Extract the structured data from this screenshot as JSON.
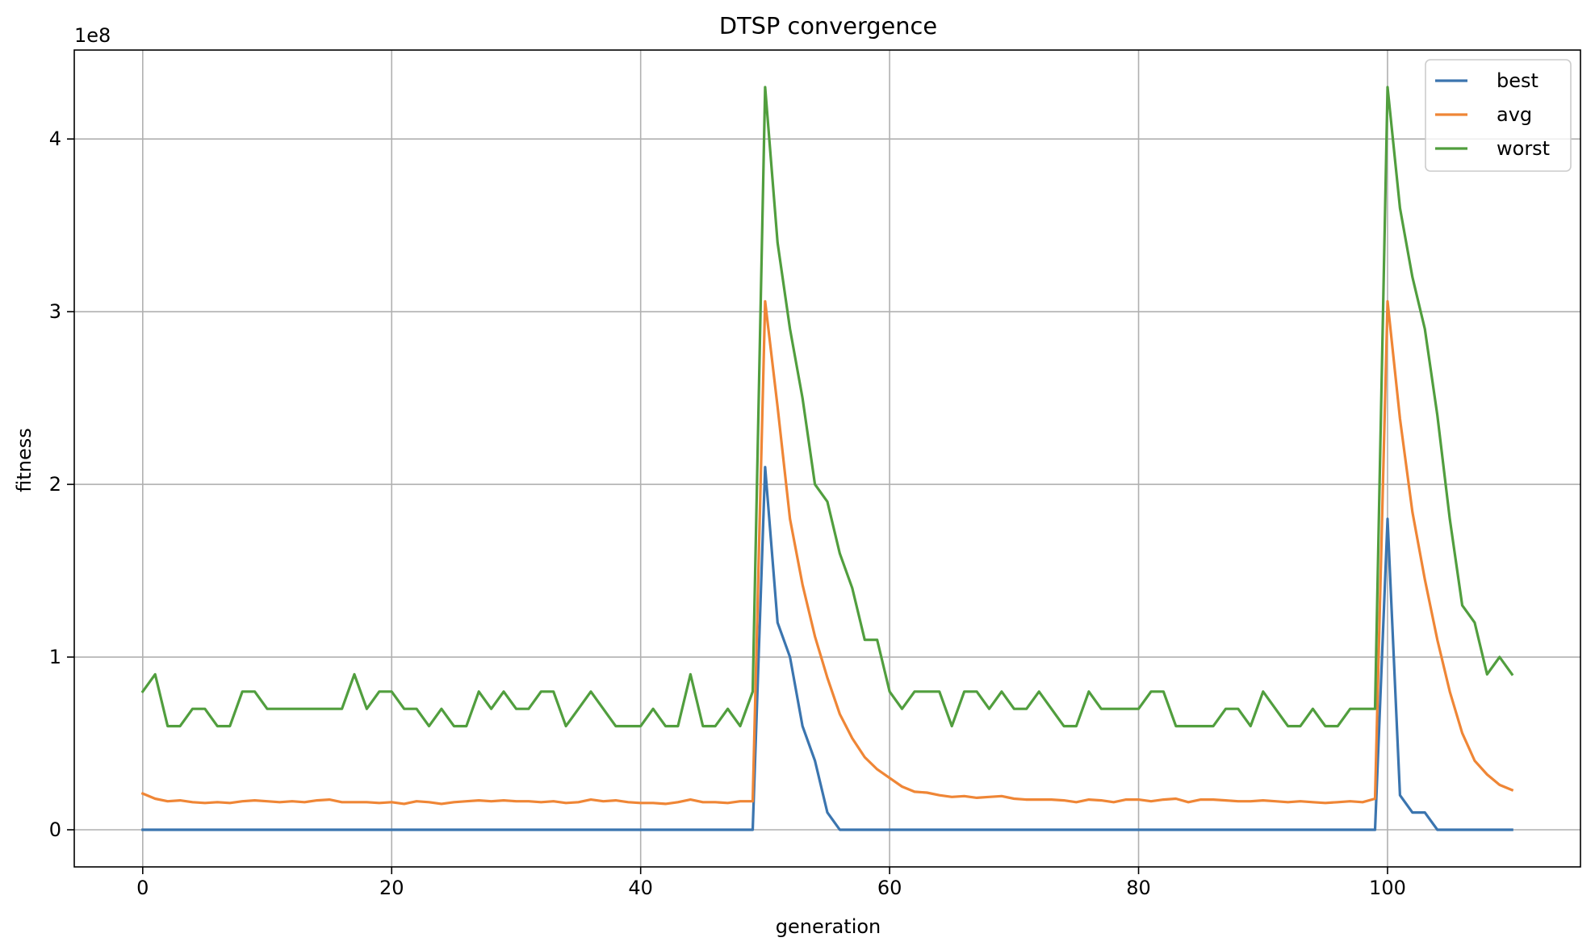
{
  "chart_data": {
    "type": "line",
    "title": "DTSP convergence",
    "xlabel": "generation",
    "ylabel": "fitness",
    "y_offset_text": "1e8",
    "xlim": [
      -5.5,
      115.5
    ],
    "ylim": [
      -0.215,
      4.515
    ],
    "x_ticks": [
      0,
      20,
      40,
      60,
      80,
      100
    ],
    "y_ticks": [
      0,
      1,
      2,
      3,
      4
    ],
    "grid": true,
    "legend_position": "top-right",
    "series": [
      {
        "name": "best",
        "color": "#3b75af",
        "x": [
          0,
          1,
          2,
          3,
          4,
          5,
          6,
          7,
          8,
          9,
          10,
          11,
          12,
          13,
          14,
          15,
          16,
          17,
          18,
          19,
          20,
          21,
          22,
          23,
          24,
          25,
          26,
          27,
          28,
          29,
          30,
          31,
          32,
          33,
          34,
          35,
          36,
          37,
          38,
          39,
          40,
          41,
          42,
          43,
          44,
          45,
          46,
          47,
          48,
          49,
          50,
          51,
          52,
          53,
          54,
          55,
          56,
          57,
          58,
          59,
          60,
          61,
          62,
          63,
          64,
          65,
          66,
          67,
          68,
          69,
          70,
          71,
          72,
          73,
          74,
          75,
          76,
          77,
          78,
          79,
          80,
          81,
          82,
          83,
          84,
          85,
          86,
          87,
          88,
          89,
          90,
          91,
          92,
          93,
          94,
          95,
          96,
          97,
          98,
          99,
          100,
          101,
          102,
          103,
          104,
          105,
          106,
          107,
          108,
          109,
          110
        ],
        "values": [
          0,
          0,
          0,
          0,
          0,
          0,
          0,
          0,
          0,
          0,
          0,
          0,
          0,
          0,
          0,
          0,
          0,
          0,
          0,
          0,
          0,
          0,
          0,
          0,
          0,
          0,
          0,
          0,
          0,
          0,
          0,
          0,
          0,
          0,
          0,
          0,
          0,
          0,
          0,
          0,
          0,
          0,
          0,
          0,
          0,
          0,
          0,
          0,
          0,
          0,
          2.1,
          1.2,
          1.0,
          0.6,
          0.4,
          0.1,
          0,
          0,
          0,
          0,
          0,
          0,
          0,
          0,
          0,
          0,
          0,
          0,
          0,
          0,
          0,
          0,
          0,
          0,
          0,
          0,
          0,
          0,
          0,
          0,
          0,
          0,
          0,
          0,
          0,
          0,
          0,
          0,
          0,
          0,
          0,
          0,
          0,
          0,
          0,
          0,
          0,
          0,
          0,
          0,
          1.8,
          0.2,
          0.1,
          0.1,
          0,
          0,
          0,
          0,
          0,
          0,
          0
        ]
      },
      {
        "name": "avg",
        "color": "#ef8636",
        "x": [
          0,
          1,
          2,
          3,
          4,
          5,
          6,
          7,
          8,
          9,
          10,
          11,
          12,
          13,
          14,
          15,
          16,
          17,
          18,
          19,
          20,
          21,
          22,
          23,
          24,
          25,
          26,
          27,
          28,
          29,
          30,
          31,
          32,
          33,
          34,
          35,
          36,
          37,
          38,
          39,
          40,
          41,
          42,
          43,
          44,
          45,
          46,
          47,
          48,
          49,
          50,
          51,
          52,
          53,
          54,
          55,
          56,
          57,
          58,
          59,
          60,
          61,
          62,
          63,
          64,
          65,
          66,
          67,
          68,
          69,
          70,
          71,
          72,
          73,
          74,
          75,
          76,
          77,
          78,
          79,
          80,
          81,
          82,
          83,
          84,
          85,
          86,
          87,
          88,
          89,
          90,
          91,
          92,
          93,
          94,
          95,
          96,
          97,
          98,
          99,
          100,
          101,
          102,
          103,
          104,
          105,
          106,
          107,
          108,
          109,
          110
        ],
        "values": [
          0.21,
          0.18,
          0.165,
          0.17,
          0.16,
          0.155,
          0.16,
          0.155,
          0.165,
          0.17,
          0.165,
          0.16,
          0.165,
          0.16,
          0.17,
          0.175,
          0.16,
          0.16,
          0.16,
          0.155,
          0.16,
          0.15,
          0.165,
          0.16,
          0.15,
          0.16,
          0.165,
          0.17,
          0.165,
          0.17,
          0.165,
          0.165,
          0.16,
          0.165,
          0.155,
          0.16,
          0.175,
          0.165,
          0.17,
          0.16,
          0.155,
          0.155,
          0.15,
          0.16,
          0.175,
          0.16,
          0.16,
          0.155,
          0.165,
          0.165,
          3.06,
          2.45,
          1.8,
          1.42,
          1.12,
          0.88,
          0.67,
          0.53,
          0.42,
          0.35,
          0.3,
          0.25,
          0.22,
          0.215,
          0.2,
          0.19,
          0.195,
          0.185,
          0.19,
          0.195,
          0.18,
          0.175,
          0.175,
          0.175,
          0.17,
          0.16,
          0.175,
          0.17,
          0.16,
          0.175,
          0.175,
          0.165,
          0.175,
          0.18,
          0.16,
          0.175,
          0.175,
          0.17,
          0.165,
          0.165,
          0.17,
          0.165,
          0.16,
          0.165,
          0.16,
          0.155,
          0.16,
          0.165,
          0.16,
          0.18,
          3.06,
          2.38,
          1.84,
          1.45,
          1.1,
          0.8,
          0.56,
          0.4,
          0.32,
          0.26,
          0.23
        ]
      },
      {
        "name": "worst",
        "color": "#519e3e",
        "x": [
          0,
          1,
          2,
          3,
          4,
          5,
          6,
          7,
          8,
          9,
          10,
          11,
          12,
          13,
          14,
          15,
          16,
          17,
          18,
          19,
          20,
          21,
          22,
          23,
          24,
          25,
          26,
          27,
          28,
          29,
          30,
          31,
          32,
          33,
          34,
          35,
          36,
          37,
          38,
          39,
          40,
          41,
          42,
          43,
          44,
          45,
          46,
          47,
          48,
          49,
          50,
          51,
          52,
          53,
          54,
          55,
          56,
          57,
          58,
          59,
          60,
          61,
          62,
          63,
          64,
          65,
          66,
          67,
          68,
          69,
          70,
          71,
          72,
          73,
          74,
          75,
          76,
          77,
          78,
          79,
          80,
          81,
          82,
          83,
          84,
          85,
          86,
          87,
          88,
          89,
          90,
          91,
          92,
          93,
          94,
          95,
          96,
          97,
          98,
          99,
          100,
          101,
          102,
          103,
          104,
          105,
          106,
          107,
          108,
          109,
          110
        ],
        "values": [
          0.8,
          0.9,
          0.6,
          0.6,
          0.7,
          0.7,
          0.6,
          0.6,
          0.8,
          0.8,
          0.7,
          0.7,
          0.7,
          0.7,
          0.7,
          0.7,
          0.7,
          0.9,
          0.7,
          0.8,
          0.8,
          0.7,
          0.7,
          0.6,
          0.7,
          0.6,
          0.6,
          0.8,
          0.7,
          0.8,
          0.7,
          0.7,
          0.8,
          0.8,
          0.6,
          0.7,
          0.8,
          0.7,
          0.6,
          0.6,
          0.6,
          0.7,
          0.6,
          0.6,
          0.9,
          0.6,
          0.6,
          0.7,
          0.6,
          0.8,
          4.3,
          3.4,
          2.9,
          2.5,
          2.0,
          1.9,
          1.6,
          1.4,
          1.1,
          1.1,
          0.8,
          0.7,
          0.8,
          0.8,
          0.8,
          0.6,
          0.8,
          0.8,
          0.7,
          0.8,
          0.7,
          0.7,
          0.8,
          0.7,
          0.6,
          0.6,
          0.8,
          0.7,
          0.7,
          0.7,
          0.7,
          0.8,
          0.8,
          0.6,
          0.6,
          0.6,
          0.6,
          0.7,
          0.7,
          0.6,
          0.8,
          0.7,
          0.6,
          0.6,
          0.7,
          0.6,
          0.6,
          0.7,
          0.7,
          0.7,
          4.3,
          3.6,
          3.2,
          2.9,
          2.4,
          1.8,
          1.3,
          1.2,
          0.9,
          1.0,
          0.9
        ]
      }
    ]
  }
}
